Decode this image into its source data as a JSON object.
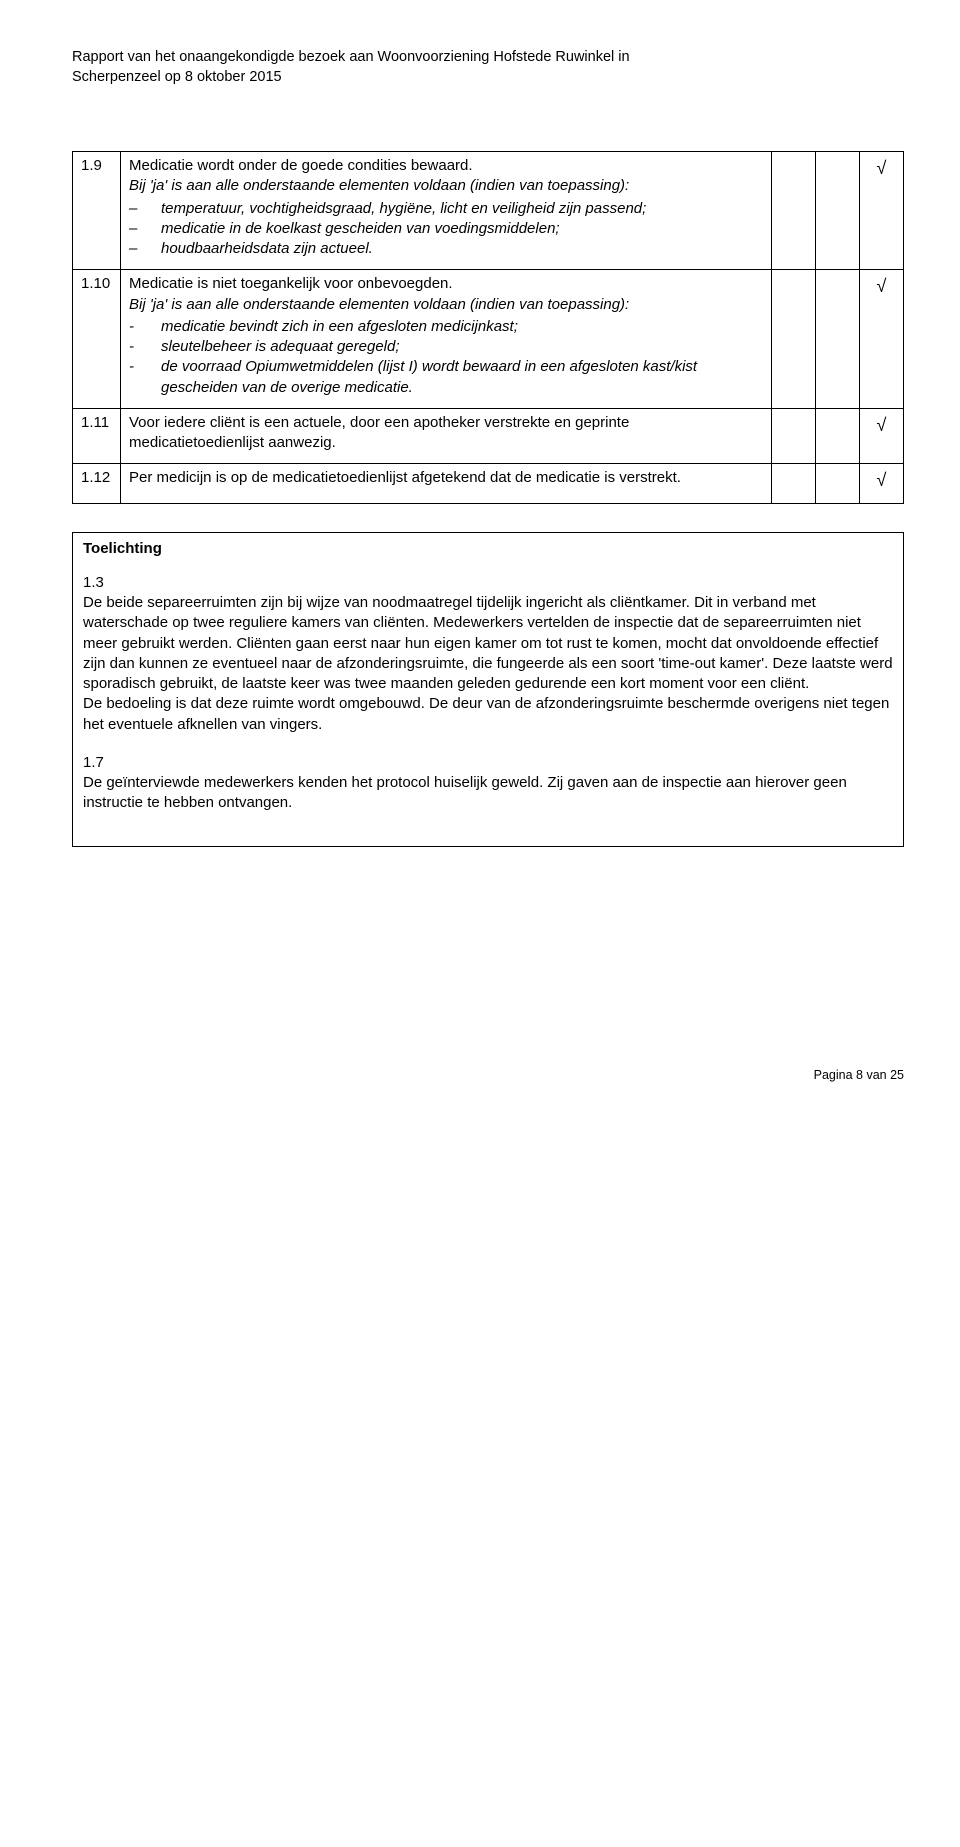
{
  "header": {
    "line1": "Rapport van het onaangekondigde bezoek aan Woonvoorziening Hofstede Ruwinkel in",
    "line2": "Scherpenzeel op 8 oktober 2015"
  },
  "rows": [
    {
      "num": "1.9",
      "title": "Medicatie wordt onder de goede condities bewaard.",
      "sub_intro": "Bij 'ja' is aan alle onderstaande elementen voldaan (indien van toepassing):",
      "bullet_style": "dash",
      "bullets": [
        "temperatuur, vochtigheidsgraad, hygiëne, licht en veiligheid zijn passend;",
        "medicatie in de koelkast gescheiden van voedingsmiddelen;",
        "houdbaarheidsdata zijn actueel."
      ],
      "checks": [
        "",
        "",
        "√"
      ]
    },
    {
      "num": "1.10",
      "title": "Medicatie is niet toegankelijk voor onbevoegden.",
      "sub_intro": "Bij 'ja' is aan alle onderstaande elementen voldaan (indien van toepassing):",
      "bullet_style": "hyph",
      "bullets": [
        "medicatie bevindt zich in een afgesloten medicijnkast;",
        "sleutelbeheer is adequaat geregeld;",
        "de voorraad Opiumwetmiddelen (lijst I) wordt bewaard in een afgesloten kast/kist gescheiden van de overige medicatie."
      ],
      "checks": [
        "",
        "",
        "√"
      ]
    },
    {
      "num": "1.11",
      "title": "Voor iedere cliënt is een actuele, door een apotheker verstrekte en geprinte medicatietoedienlijst aanwezig.",
      "sub_intro": "",
      "bullets": [],
      "checks": [
        "",
        "",
        "√"
      ]
    },
    {
      "num": "1.12",
      "title": "Per medicijn is op de medicatietoedienlijst afgetekend dat de medicatie is verstrekt.",
      "sub_intro": "",
      "bullets": [],
      "checks": [
        "",
        "",
        "√"
      ]
    }
  ],
  "toelichting": {
    "heading": "Toelichting",
    "blocks": [
      {
        "num": "1.3",
        "text": "De beide separeerruimten zijn bij wijze van noodmaatregel tijdelijk ingericht als cliëntkamer. Dit in verband met waterschade op twee reguliere kamers van cliënten. Medewerkers vertelden de inspectie dat de separeerruimten  niet meer gebruikt werden. Cliënten gaan eerst naar hun eigen kamer om tot rust te komen, mocht dat onvoldoende effectief zijn dan kunnen ze eventueel naar de afzonderingsruimte, die fungeerde als een soort 'time-out kamer'. Deze laatste werd sporadisch gebruikt, de laatste keer was twee maanden geleden gedurende een kort moment voor een cliënt.",
        "text2": "De bedoeling is dat deze ruimte wordt omgebouwd. De deur van de afzonderingsruimte beschermde overigens niet tegen het eventuele afknellen van vingers."
      },
      {
        "num": "1.7",
        "text": "De geïnterviewde medewerkers kenden het protocol huiselijk geweld. Zij gaven aan de inspectie aan hierover geen instructie te hebben ontvangen.",
        "text2": ""
      }
    ]
  },
  "footer": "Pagina 8 van 25"
}
